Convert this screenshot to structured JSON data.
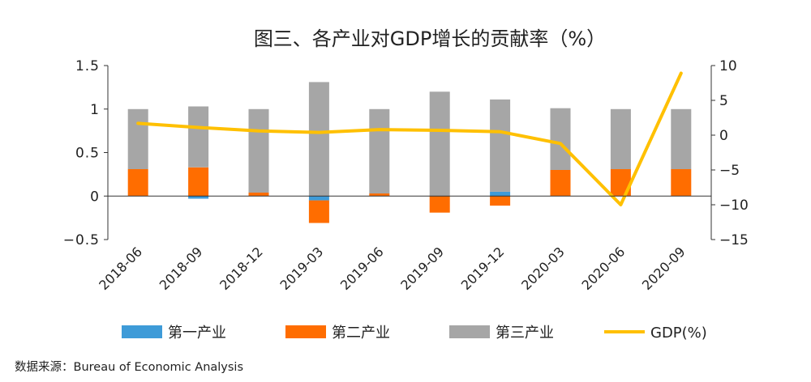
{
  "chart_data": {
    "type": "bar",
    "title": "图三、各产业对GDP增长的贡献率（%）",
    "categories": [
      "2018-06",
      "2018-09",
      "2018-12",
      "2019-03",
      "2019-06",
      "2019-09",
      "2019-12",
      "2020-03",
      "2020-06",
      "2020-09"
    ],
    "stacked": true,
    "ylim_left": [
      -0.5,
      1.5
    ],
    "yticks_left": [
      "1.5",
      "1",
      "0.5",
      "0",
      "−0.5"
    ],
    "ylim_right": [
      -15,
      10
    ],
    "yticks_right": [
      "10",
      "5",
      "0",
      "−5",
      "−10",
      "−15"
    ],
    "series": [
      {
        "name": "第一产业",
        "type": "bar",
        "axis": "left",
        "color": "#3e9bd8",
        "values": [
          0.0,
          -0.03,
          0.0,
          -0.05,
          0.0,
          0.0,
          0.05,
          0.0,
          0.0,
          0.0
        ]
      },
      {
        "name": "第二产业",
        "type": "bar",
        "axis": "left",
        "color": "#ff6d00",
        "values": [
          0.31,
          0.33,
          0.04,
          -0.26,
          0.03,
          -0.19,
          -0.11,
          0.3,
          0.31,
          0.31
        ]
      },
      {
        "name": "第三产业",
        "type": "bar",
        "axis": "left",
        "color": "#a6a6a6",
        "values": [
          0.69,
          0.7,
          0.96,
          1.31,
          0.97,
          1.2,
          1.06,
          0.71,
          0.69,
          0.69
        ]
      },
      {
        "name": "GDP(%)",
        "type": "line",
        "axis": "right",
        "color": "#ffc000",
        "values": [
          1.7,
          1.1,
          0.6,
          0.4,
          0.8,
          0.7,
          0.5,
          -1.2,
          -10.0,
          8.9
        ]
      }
    ],
    "grid": false,
    "legend_position": "bottom"
  },
  "source": "数据来源：Bureau of Economic Analysis"
}
